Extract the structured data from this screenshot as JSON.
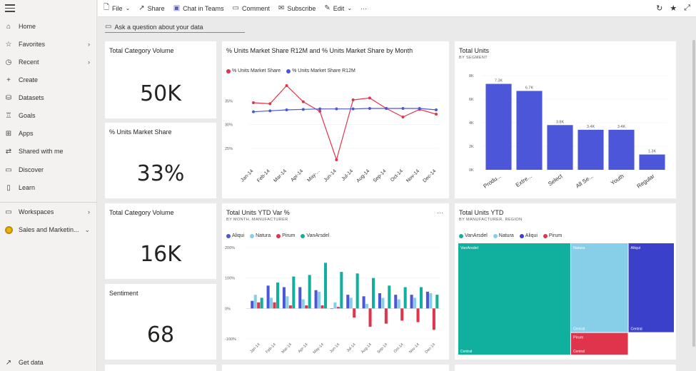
{
  "sidebar": {
    "items": [
      {
        "label": "Home",
        "icon": "home-icon",
        "glyph": "⌂"
      },
      {
        "label": "Favorites",
        "icon": "star-icon",
        "glyph": "☆",
        "chevron": true
      },
      {
        "label": "Recent",
        "icon": "clock-icon",
        "glyph": "◷",
        "chevron": true
      },
      {
        "label": "Create",
        "icon": "plus-icon",
        "glyph": "+"
      },
      {
        "label": "Datasets",
        "icon": "database-icon",
        "glyph": "⛁"
      },
      {
        "label": "Goals",
        "icon": "trophy-icon",
        "glyph": "♖"
      },
      {
        "label": "Apps",
        "icon": "apps-icon",
        "glyph": "⊞"
      },
      {
        "label": "Shared with me",
        "icon": "share-icon",
        "glyph": "⇄"
      },
      {
        "label": "Discover",
        "icon": "discover-icon",
        "glyph": "▭"
      },
      {
        "label": "Learn",
        "icon": "book-icon",
        "glyph": "▯"
      }
    ],
    "workspaces": {
      "label": "Workspaces",
      "icon": "workspaces-icon",
      "glyph": "▭"
    },
    "current_workspace": {
      "label": "Sales and Marketin..."
    },
    "get_data": {
      "label": "Get data",
      "icon": "arrow-up-right-icon",
      "glyph": "↗"
    }
  },
  "toolbar": {
    "file": "File",
    "share": "Share",
    "chat": "Chat in Teams",
    "comment": "Comment",
    "subscribe": "Subscribe",
    "edit": "Edit",
    "more": "···"
  },
  "qna": {
    "placeholder": "Ask a question about your data"
  },
  "tiles": {
    "kpi1": {
      "title": "Total Category Volume",
      "value": "50K"
    },
    "kpi2": {
      "title": "% Units Market Share",
      "value": "33%"
    },
    "kpi3": {
      "title": "Total Category Volume",
      "value": "16K"
    },
    "kpi4": {
      "title": "Sentiment",
      "value": "68"
    }
  },
  "colors": {
    "blue": "#4c56d8",
    "red": "#e0344c",
    "teal": "#11b09e",
    "lightblue": "#87cfe9",
    "darkblue": "#3a40c9"
  },
  "chart_data": [
    {
      "id": "line",
      "type": "line",
      "title": "% Units Market Share R12M and % Units Market Share by Month",
      "categories": [
        "Jan-14",
        "Feb-14",
        "Mar-14",
        "Apr-14",
        "May-...",
        "Jun-14",
        "Jul-14",
        "Aug-14",
        "Sep-14",
        "Oct-14",
        "Nov-14",
        "Dec-14"
      ],
      "series": [
        {
          "name": "% Units Market Share",
          "color": "#e0344c",
          "values": [
            34.6,
            34.4,
            38.2,
            34.8,
            32.8,
            22.6,
            35.2,
            35.6,
            33.4,
            31.6,
            33.2,
            32.2
          ]
        },
        {
          "name": "% Units Market Share R12M",
          "color": "#4c56d8",
          "values": [
            32.7,
            32.9,
            33.1,
            33.2,
            33.3,
            33.3,
            33.3,
            33.4,
            33.4,
            33.4,
            33.4,
            33.1
          ]
        }
      ],
      "yticks": [
        "35%",
        "30%",
        "25%"
      ],
      "ytick_values": [
        35,
        30,
        25
      ],
      "ylim": [
        22,
        40
      ]
    },
    {
      "id": "bar",
      "type": "bar",
      "title": "Total Units",
      "subtitle": "BY SEGMENT",
      "categories": [
        "Produ...",
        "Extre...",
        "Select",
        "All Se...",
        "Youth",
        "Regular"
      ],
      "values": [
        7300,
        6700,
        3800,
        3400,
        3400,
        1300
      ],
      "data_labels": [
        "7.3K",
        "6.7K",
        "3.8K",
        "3.4K",
        "3.4K",
        "1.3K"
      ],
      "yticks": [
        "8K",
        "6K",
        "4K",
        "2K",
        "0K"
      ],
      "ytick_values": [
        8000,
        6000,
        4000,
        2000,
        0
      ],
      "ylim": [
        0,
        8000
      ],
      "color": "#4c56d8"
    },
    {
      "id": "column",
      "type": "bar",
      "title": "Total Units YTD Var %",
      "subtitle": "BY MONTH, MANUFACTURER",
      "categories": [
        "Jan-14",
        "Feb-14",
        "Mar-14",
        "Apr-14",
        "May-14",
        "Jun-14",
        "Jul-14",
        "Aug-14",
        "Sep-14",
        "Oct-14",
        "Nov-14",
        "Dec-14"
      ],
      "series": [
        {
          "name": "Aliqui",
          "color": "#4c56d8",
          "values": [
            25,
            75,
            70,
            70,
            60,
            0,
            45,
            40,
            50,
            45,
            45,
            55
          ]
        },
        {
          "name": "Natura",
          "color": "#87cfe9",
          "values": [
            45,
            35,
            40,
            30,
            55,
            20,
            35,
            15,
            35,
            30,
            35,
            50
          ]
        },
        {
          "name": "Pirum",
          "color": "#e0344c",
          "values": [
            20,
            20,
            10,
            10,
            10,
            5,
            -30,
            -60,
            -50,
            -40,
            -45,
            -70
          ]
        },
        {
          "name": "VanArsdel",
          "color": "#11b09e",
          "values": [
            35,
            85,
            105,
            110,
            150,
            120,
            115,
            100,
            75,
            70,
            70,
            45
          ]
        }
      ],
      "yticks": [
        "200%",
        "100%",
        "0%",
        "-100%"
      ],
      "ytick_values": [
        200,
        100,
        0,
        -100
      ],
      "ylim": [
        -100,
        200
      ]
    },
    {
      "id": "treemap",
      "type": "treemap",
      "title": "Total Units YTD",
      "subtitle": "BY MANUFACTURER, REGION",
      "legend": [
        "VanArsdel",
        "Natura",
        "Aliqui",
        "Pirum"
      ],
      "nodes": [
        {
          "name": "VanArsdel",
          "color": "#11b09e",
          "value": 49,
          "sub": "Central"
        },
        {
          "name": "Natura",
          "color": "#87cfe9",
          "value": 20,
          "sub": "Central"
        },
        {
          "name": "Aliqui",
          "color": "#3a40c9",
          "value": 16,
          "sub": "Central"
        },
        {
          "name": "Pirum",
          "color": "#e0344c",
          "value": 9,
          "sub": "Central"
        }
      ]
    }
  ]
}
